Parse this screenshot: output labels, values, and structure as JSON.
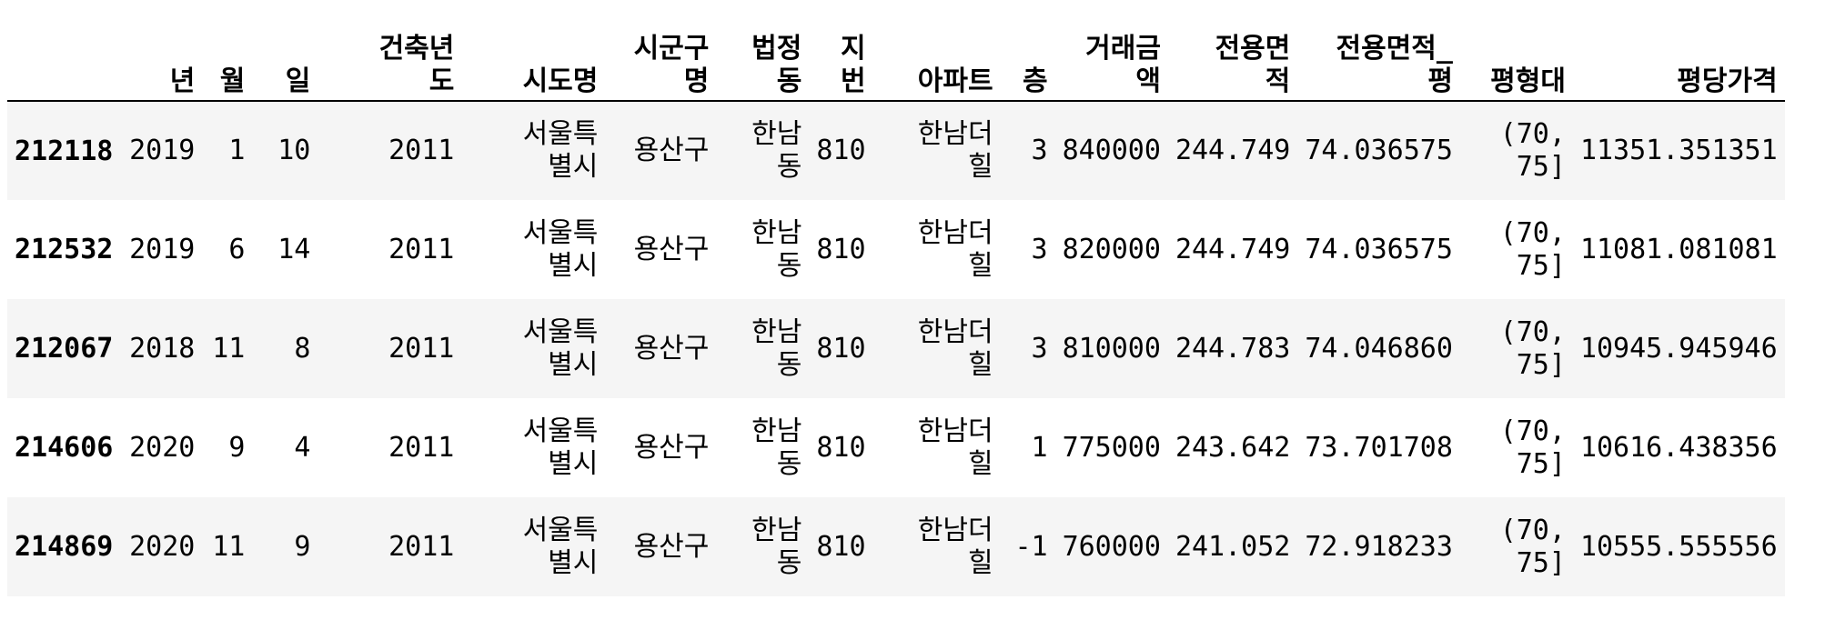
{
  "columns": [
    {
      "key": "index",
      "lines": [
        ""
      ]
    },
    {
      "key": "year",
      "lines": [
        "년"
      ]
    },
    {
      "key": "month",
      "lines": [
        "월"
      ]
    },
    {
      "key": "day",
      "lines": [
        "일"
      ]
    },
    {
      "key": "built_year",
      "lines": [
        "건축년",
        "도"
      ]
    },
    {
      "key": "sido",
      "lines": [
        "시도명"
      ]
    },
    {
      "key": "sigungu",
      "lines": [
        "시군구",
        "명"
      ]
    },
    {
      "key": "dong",
      "lines": [
        "법정",
        "동"
      ]
    },
    {
      "key": "jibun",
      "lines": [
        "지",
        "번"
      ]
    },
    {
      "key": "apt",
      "lines": [
        "아파트"
      ]
    },
    {
      "key": "floor",
      "lines": [
        "층"
      ]
    },
    {
      "key": "price",
      "lines": [
        "거래금",
        "액"
      ]
    },
    {
      "key": "area",
      "lines": [
        "전용면",
        "적"
      ]
    },
    {
      "key": "area_pyeong",
      "lines": [
        "전용면적_",
        "평"
      ]
    },
    {
      "key": "pyeong_band",
      "lines": [
        "평형대"
      ]
    },
    {
      "key": "price_per_pyeong",
      "lines": [
        "평당가격"
      ]
    }
  ],
  "rows": [
    {
      "index": "212118",
      "cells": [
        [
          "2019"
        ],
        [
          "1"
        ],
        [
          "10"
        ],
        [
          "2011"
        ],
        [
          "서울특",
          "별시"
        ],
        [
          "용산구"
        ],
        [
          "한남",
          "동"
        ],
        [
          "810"
        ],
        [
          "한남더",
          "힐"
        ],
        [
          "3"
        ],
        [
          "840000"
        ],
        [
          "244.749"
        ],
        [
          "74.036575"
        ],
        [
          "(70,",
          "75]"
        ],
        [
          "11351.351351"
        ]
      ]
    },
    {
      "index": "212532",
      "cells": [
        [
          "2019"
        ],
        [
          "6"
        ],
        [
          "14"
        ],
        [
          "2011"
        ],
        [
          "서울특",
          "별시"
        ],
        [
          "용산구"
        ],
        [
          "한남",
          "동"
        ],
        [
          "810"
        ],
        [
          "한남더",
          "힐"
        ],
        [
          "3"
        ],
        [
          "820000"
        ],
        [
          "244.749"
        ],
        [
          "74.036575"
        ],
        [
          "(70,",
          "75]"
        ],
        [
          "11081.081081"
        ]
      ]
    },
    {
      "index": "212067",
      "cells": [
        [
          "2018"
        ],
        [
          "11"
        ],
        [
          "8"
        ],
        [
          "2011"
        ],
        [
          "서울특",
          "별시"
        ],
        [
          "용산구"
        ],
        [
          "한남",
          "동"
        ],
        [
          "810"
        ],
        [
          "한남더",
          "힐"
        ],
        [
          "3"
        ],
        [
          "810000"
        ],
        [
          "244.783"
        ],
        [
          "74.046860"
        ],
        [
          "(70,",
          "75]"
        ],
        [
          "10945.945946"
        ]
      ]
    },
    {
      "index": "214606",
      "cells": [
        [
          "2020"
        ],
        [
          "9"
        ],
        [
          "4"
        ],
        [
          "2011"
        ],
        [
          "서울특",
          "별시"
        ],
        [
          "용산구"
        ],
        [
          "한남",
          "동"
        ],
        [
          "810"
        ],
        [
          "한남더",
          "힐"
        ],
        [
          "1"
        ],
        [
          "775000"
        ],
        [
          "243.642"
        ],
        [
          "73.701708"
        ],
        [
          "(70,",
          "75]"
        ],
        [
          "10616.438356"
        ]
      ]
    },
    {
      "index": "214869",
      "cells": [
        [
          "2020"
        ],
        [
          "11"
        ],
        [
          "9"
        ],
        [
          "2011"
        ],
        [
          "서울특",
          "별시"
        ],
        [
          "용산구"
        ],
        [
          "한남",
          "동"
        ],
        [
          "810"
        ],
        [
          "한남더",
          "힐"
        ],
        [
          "-1"
        ],
        [
          "760000"
        ],
        [
          "241.052"
        ],
        [
          "72.918233"
        ],
        [
          "(70,",
          "75]"
        ],
        [
          "10555.555556"
        ]
      ]
    }
  ]
}
